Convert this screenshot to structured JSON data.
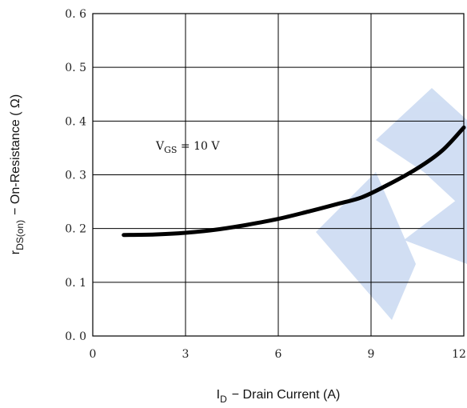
{
  "chart_data": {
    "type": "line",
    "title": "",
    "xlabel_main": "I",
    "xlabel_sub": "D",
    "xlabel_rest": "−  Drain Current (A)",
    "ylabel_main": "r",
    "ylabel_sub": "DS(on)",
    "ylabel_rest": "−  On-Resistance ( Ω)",
    "xlim": [
      0,
      12
    ],
    "ylim": [
      0.0,
      0.6
    ],
    "grid": true,
    "x_ticks": [
      "0",
      "3",
      "6",
      "9",
      "12"
    ],
    "y_ticks": [
      "0. 0",
      "0. 1",
      "0. 2",
      "0. 3",
      "0. 4",
      "0. 5",
      "0. 6"
    ],
    "annotation": {
      "main": "V",
      "sub": "GS",
      "rest": " =  10  V"
    },
    "series": [
      {
        "x": [
          1.0,
          2.0,
          3.0,
          4.0,
          5.0,
          6.0,
          7.0,
          8.0,
          8.7,
          9.5,
          10.5,
          11.3,
          12.0
        ],
        "y": [
          0.188,
          0.189,
          0.192,
          0.198,
          0.207,
          0.218,
          0.232,
          0.247,
          0.258,
          0.28,
          0.312,
          0.345,
          0.388
        ]
      }
    ],
    "colors": {
      "line": "#000000",
      "watermark": "#c9d9f1"
    }
  }
}
